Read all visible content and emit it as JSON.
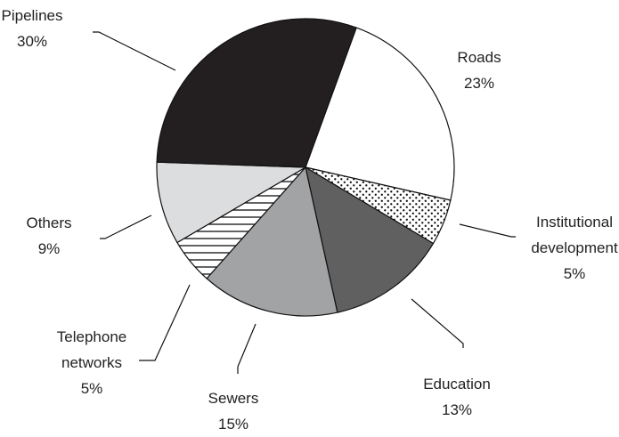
{
  "chart_data": {
    "type": "pie",
    "title": "",
    "unit": "%",
    "slices": [
      {
        "label": [
          "Roads"
        ],
        "value_label": "23%",
        "value": 23,
        "fill": "pattern:white"
      },
      {
        "label": [
          "Institutional",
          "development"
        ],
        "value_label": "5%",
        "value": 5,
        "fill": "pattern:dots"
      },
      {
        "label": [
          "Education"
        ],
        "value_label": "13%",
        "value": 13,
        "fill": "#606060"
      },
      {
        "label": [
          "Sewers"
        ],
        "value_label": "15%",
        "value": 15,
        "fill": "#a2a3a5"
      },
      {
        "label": [
          "Telephone",
          "networks"
        ],
        "value_label": "5%",
        "value": 5,
        "fill": "pattern:hlines"
      },
      {
        "label": [
          "Others"
        ],
        "value_label": "9%",
        "value": 9,
        "fill": "#dcdddf"
      },
      {
        "label": [
          "Pipelines"
        ],
        "value_label": "30%",
        "value": 30,
        "fill": "#231f20"
      }
    ]
  }
}
